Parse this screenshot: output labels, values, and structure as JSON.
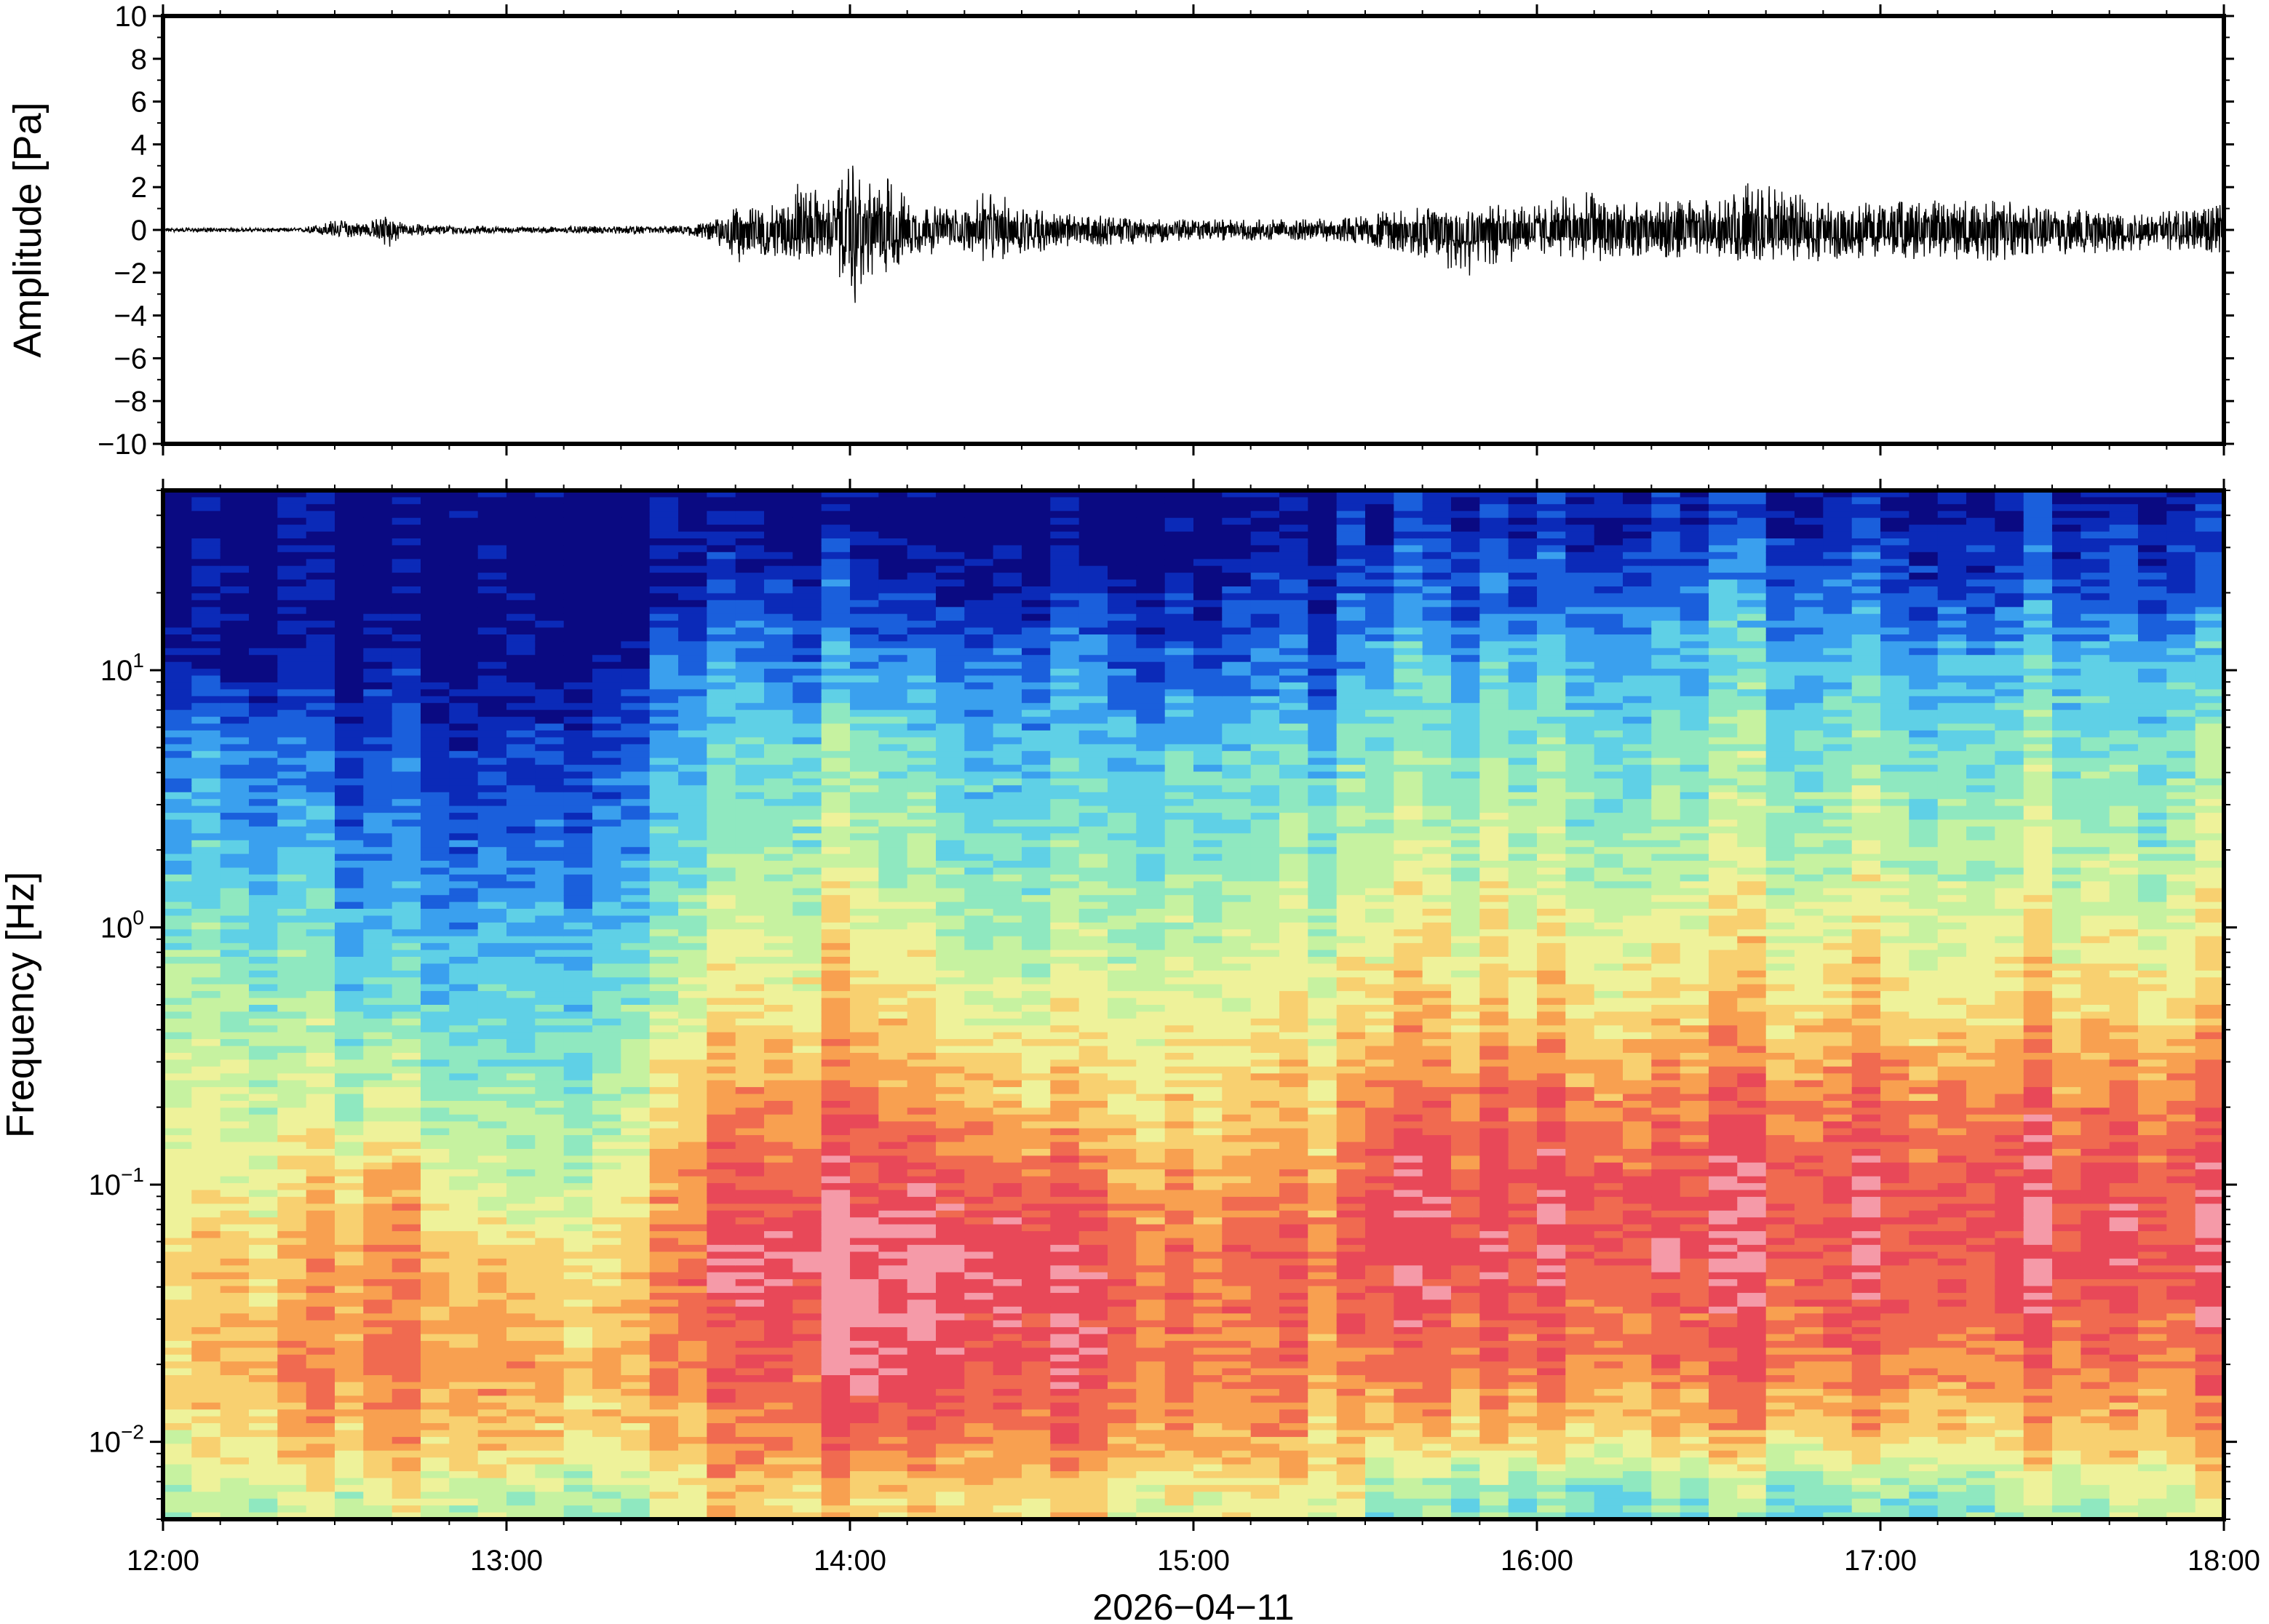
{
  "chart_data": [
    {
      "type": "line",
      "ylabel": "Amplitude [Pa]",
      "ylim": [
        -10,
        10
      ],
      "yticks": [
        10,
        8,
        6,
        4,
        2,
        0,
        -2,
        -4,
        -6,
        -8,
        -10
      ],
      "ytick_labels": [
        "10",
        "8",
        "6",
        "4",
        "2",
        "0",
        "−2",
        "−4",
        "−6",
        "−8",
        "−10"
      ],
      "x_range": [
        "12:00",
        "18:00"
      ],
      "envelope": {
        "description": "approximate peak amplitude envelope of the pressure trace",
        "time_hours": [
          12.0,
          12.4,
          12.5,
          12.6,
          12.65,
          12.7,
          13.0,
          13.5,
          13.6,
          13.65,
          13.8,
          13.85,
          13.95,
          14.0,
          14.05,
          14.1,
          14.2,
          14.35,
          14.4,
          14.45,
          14.6,
          14.9,
          15.0,
          15.3,
          15.45,
          15.6,
          15.8,
          16.0,
          16.15,
          16.3,
          16.55,
          16.6,
          16.8,
          17.0,
          17.3,
          17.5,
          17.8,
          18.0
        ],
        "max_pa": [
          0.1,
          0.1,
          0.5,
          0.4,
          0.8,
          0.3,
          0.15,
          0.2,
          0.4,
          1.0,
          1.2,
          2.4,
          1.4,
          3.2,
          2.1,
          2.7,
          1.2,
          1.0,
          2.0,
          1.6,
          0.8,
          0.5,
          0.5,
          0.5,
          0.6,
          1.0,
          1.2,
          1.2,
          2.0,
          1.3,
          1.5,
          2.4,
          1.5,
          1.3,
          1.5,
          1.2,
          0.9,
          1.2
        ],
        "min_pa": [
          -0.1,
          -0.1,
          -0.4,
          -0.3,
          -1.0,
          -0.3,
          -0.15,
          -0.2,
          -0.5,
          -1.6,
          -1.2,
          -1.5,
          -1.3,
          -3.9,
          -2.5,
          -2.1,
          -1.2,
          -1.0,
          -1.8,
          -1.4,
          -0.9,
          -0.6,
          -0.5,
          -0.5,
          -0.6,
          -1.0,
          -2.2,
          -1.2,
          -1.5,
          -1.3,
          -1.5,
          -1.4,
          -1.5,
          -1.3,
          -1.5,
          -1.3,
          -0.9,
          -1.2
        ]
      }
    },
    {
      "type": "heatmap",
      "ylabel": "Frequency [Hz]",
      "yscale": "log",
      "ylim": [
        0.005,
        50
      ],
      "yticks": [
        {
          "base": "10",
          "exp": "1",
          "value": 10
        },
        {
          "base": "10",
          "exp": "0",
          "value": 1
        },
        {
          "base": "10",
          "exp": "−1",
          "value": 0.1
        },
        {
          "base": "10",
          "exp": "−2",
          "value": 0.01
        }
      ],
      "colormap": [
        "#0a0a82",
        "#0b2ab8",
        "#1a5fdc",
        "#3aa0ee",
        "#5fd0e6",
        "#8fe8c0",
        "#c6f2a0",
        "#eef29a",
        "#f8d070",
        "#f8a050",
        "#f06a50",
        "#e84858",
        "#f59aa8"
      ],
      "column_spacing_minutes": 5,
      "columns_t_hours": [
        12.0,
        12.4,
        12.65,
        12.9,
        13.3,
        13.62,
        13.9,
        14.05,
        14.4,
        14.7,
        15.0,
        15.45,
        15.5,
        16.0,
        16.5,
        17.0,
        17.5,
        18.0
      ],
      "rows_freq_hz": [
        0.006,
        0.01,
        0.02,
        0.05,
        0.1,
        0.2,
        0.5,
        1,
        2,
        5,
        10,
        20,
        40
      ],
      "levels": [
        [
          6,
          7,
          8,
          8,
          7,
          7,
          6,
          5,
          4,
          3,
          1,
          0,
          0
        ],
        [
          6,
          8,
          9,
          8,
          7,
          6,
          5,
          4,
          3,
          2,
          0,
          0,
          0
        ],
        [
          7,
          9,
          10,
          10,
          9,
          7,
          5,
          4,
          3,
          2,
          1,
          0,
          0
        ],
        [
          6,
          8,
          9,
          8,
          6,
          5,
          4,
          3,
          2,
          1,
          0,
          0,
          0
        ],
        [
          6,
          8,
          9,
          8,
          7,
          6,
          5,
          4,
          3,
          2,
          1,
          0,
          0
        ],
        [
          8,
          9,
          10,
          11,
          10,
          9,
          7,
          6,
          5,
          4,
          3,
          1,
          0
        ],
        [
          8,
          10,
          11,
          12,
          11,
          10,
          8,
          7,
          6,
          5,
          3,
          2,
          0
        ],
        [
          8,
          10,
          12,
          12,
          11,
          10,
          8,
          7,
          6,
          5,
          3,
          1,
          0
        ],
        [
          8,
          10,
          11,
          12,
          11,
          9,
          7,
          6,
          5,
          4,
          3,
          1,
          0
        ],
        [
          8,
          10,
          11,
          11,
          10,
          8,
          7,
          6,
          5,
          4,
          3,
          1,
          0
        ],
        [
          7,
          9,
          10,
          10,
          9,
          8,
          7,
          6,
          5,
          4,
          2,
          1,
          0
        ],
        [
          7,
          8,
          9,
          10,
          9,
          8,
          7,
          6,
          5,
          4,
          2,
          1,
          0
        ],
        [
          5,
          8,
          10,
          11,
          11,
          10,
          8,
          7,
          6,
          5,
          4,
          2,
          1
        ],
        [
          5,
          8,
          10,
          11,
          11,
          10,
          8,
          7,
          6,
          5,
          4,
          2,
          1
        ],
        [
          5,
          8,
          10,
          11,
          11,
          10,
          8,
          7,
          6,
          5,
          4,
          3,
          1
        ],
        [
          5,
          8,
          10,
          11,
          11,
          10,
          8,
          7,
          6,
          5,
          4,
          2,
          1
        ],
        [
          6,
          8,
          10,
          11,
          11,
          10,
          8,
          7,
          6,
          5,
          4,
          2,
          1
        ],
        [
          7,
          9,
          10,
          11,
          11,
          10,
          8,
          7,
          6,
          5,
          4,
          2,
          1
        ]
      ],
      "xticks": [
        "12:00",
        "13:00",
        "14:00",
        "15:00",
        "16:00",
        "17:00",
        "18:00"
      ],
      "xlabel": "2026−04−11"
    }
  ]
}
